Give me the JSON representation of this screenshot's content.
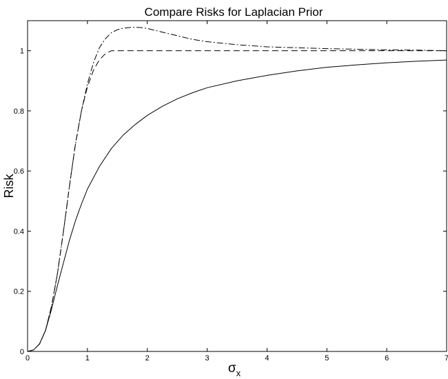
{
  "chart_data": {
    "type": "line",
    "title": "Compare Risks for Laplacian Prior",
    "xlabel": {
      "symbol": "σ",
      "subscript": "x"
    },
    "ylabel": "Risk",
    "xlim": [
      0,
      7
    ],
    "ylim": [
      0,
      1.1
    ],
    "x_ticks": [
      0,
      1,
      2,
      3,
      4,
      5,
      6,
      7
    ],
    "y_ticks": [
      0,
      0.2,
      0.4,
      0.6,
      0.8,
      1
    ],
    "grid": false,
    "legend": false,
    "series": [
      {
        "line_style": "solid",
        "color": "#000000",
        "points": [
          [
            0,
            0
          ],
          [
            0.1,
            0.005
          ],
          [
            0.2,
            0.025
          ],
          [
            0.3,
            0.07
          ],
          [
            0.4,
            0.14
          ],
          [
            0.5,
            0.22
          ],
          [
            0.6,
            0.295
          ],
          [
            0.7,
            0.37
          ],
          [
            0.8,
            0.435
          ],
          [
            0.9,
            0.49
          ],
          [
            1.0,
            0.54
          ],
          [
            1.2,
            0.615
          ],
          [
            1.4,
            0.675
          ],
          [
            1.6,
            0.72
          ],
          [
            1.8,
            0.755
          ],
          [
            2.0,
            0.785
          ],
          [
            2.25,
            0.815
          ],
          [
            2.5,
            0.84
          ],
          [
            2.75,
            0.86
          ],
          [
            3.0,
            0.877
          ],
          [
            3.5,
            0.9
          ],
          [
            4.0,
            0.918
          ],
          [
            4.5,
            0.933
          ],
          [
            5.0,
            0.945
          ],
          [
            5.5,
            0.953
          ],
          [
            6.0,
            0.96
          ],
          [
            6.5,
            0.965
          ],
          [
            7.0,
            0.969
          ]
        ]
      },
      {
        "line_style": "dashed",
        "color": "#000000",
        "points": [
          [
            0,
            0
          ],
          [
            0.1,
            0.005
          ],
          [
            0.2,
            0.025
          ],
          [
            0.3,
            0.07
          ],
          [
            0.4,
            0.15
          ],
          [
            0.5,
            0.26
          ],
          [
            0.6,
            0.4
          ],
          [
            0.7,
            0.55
          ],
          [
            0.8,
            0.69
          ],
          [
            0.9,
            0.8
          ],
          [
            1.0,
            0.88
          ],
          [
            1.1,
            0.935
          ],
          [
            1.2,
            0.97
          ],
          [
            1.3,
            0.99
          ],
          [
            1.4,
            1.0
          ],
          [
            1.5,
            1.0
          ],
          [
            2.0,
            1.0
          ],
          [
            3.0,
            1.0
          ],
          [
            4.0,
            1.0
          ],
          [
            5.0,
            1.0
          ],
          [
            6.0,
            1.0
          ],
          [
            7.0,
            1.0
          ]
        ]
      },
      {
        "line_style": "dashdot",
        "color": "#000000",
        "points": [
          [
            0,
            0
          ],
          [
            0.1,
            0.005
          ],
          [
            0.2,
            0.025
          ],
          [
            0.3,
            0.07
          ],
          [
            0.4,
            0.15
          ],
          [
            0.5,
            0.26
          ],
          [
            0.6,
            0.4
          ],
          [
            0.7,
            0.55
          ],
          [
            0.8,
            0.69
          ],
          [
            0.9,
            0.8
          ],
          [
            1.0,
            0.89
          ],
          [
            1.1,
            0.96
          ],
          [
            1.2,
            1.01
          ],
          [
            1.3,
            1.04
          ],
          [
            1.4,
            1.06
          ],
          [
            1.5,
            1.07
          ],
          [
            1.6,
            1.075
          ],
          [
            1.75,
            1.078
          ],
          [
            1.9,
            1.077
          ],
          [
            2.0,
            1.074
          ],
          [
            2.25,
            1.062
          ],
          [
            2.5,
            1.05
          ],
          [
            2.75,
            1.038
          ],
          [
            3.0,
            1.03
          ],
          [
            3.5,
            1.02
          ],
          [
            4.0,
            1.013
          ],
          [
            4.5,
            1.01
          ],
          [
            5.0,
            1.007
          ],
          [
            5.5,
            1.005
          ],
          [
            6.0,
            1.003
          ],
          [
            6.5,
            1.002
          ],
          [
            7.0,
            1.0
          ]
        ]
      }
    ]
  }
}
